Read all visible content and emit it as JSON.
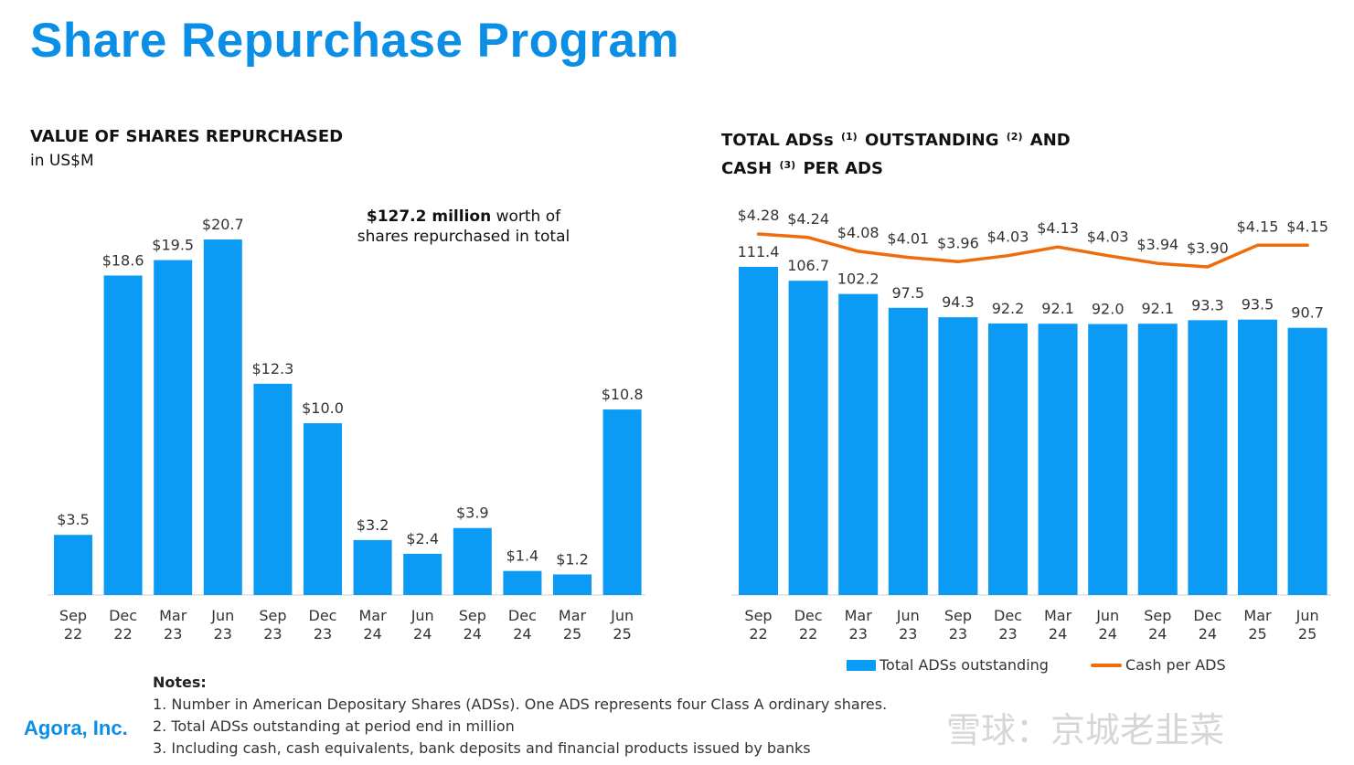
{
  "page": {
    "title": "Share Repurchase Program",
    "company": "Agora, Inc.",
    "watermark": "雪球：京城老韭菜"
  },
  "left_chart": {
    "title": "VALUE OF SHARES REPURCHASED",
    "subtitle": "in US$M",
    "annotation_bold": "$127.2 million",
    "annotation_rest": " worth of",
    "annotation_line2": "shares repurchased in total"
  },
  "right_chart": {
    "title_line1_a": "TOTAL ADSs",
    "sup1": "(1)",
    "title_line1_b": "OUTSTANDING",
    "sup2": "(2)",
    "title_line1_c": "AND",
    "title_line2_a": "CASH",
    "sup3": "(3)",
    "title_line2_b": "PER ADS",
    "legend_bar": "Total ADSs outstanding",
    "legend_line": "Cash per ADS"
  },
  "notes": {
    "heading": "Notes:",
    "items": [
      "1. Number in American Depositary Shares (ADSs). One ADS represents four Class A ordinary shares.",
      "2. Total ADSs outstanding at period end in million",
      "3. Including cash, cash equivalents, bank deposits and financial products issued by banks"
    ]
  },
  "colors": {
    "bar": "#0b9bf5",
    "line": "#ef6c0c",
    "title": "#0b8fe6"
  },
  "chart_data": [
    {
      "type": "bar",
      "title": "VALUE OF SHARES REPURCHASED",
      "ylabel": "in US$M",
      "categories": [
        [
          "Sep",
          "22"
        ],
        [
          "Dec",
          "22"
        ],
        [
          "Mar",
          "23"
        ],
        [
          "Jun",
          "23"
        ],
        [
          "Sep",
          "23"
        ],
        [
          "Dec",
          "23"
        ],
        [
          "Mar",
          "24"
        ],
        [
          "Jun",
          "24"
        ],
        [
          "Sep",
          "24"
        ],
        [
          "Dec",
          "24"
        ],
        [
          "Mar",
          "25"
        ],
        [
          "Jun",
          "25"
        ]
      ],
      "values": [
        3.5,
        18.6,
        19.5,
        20.7,
        12.3,
        10.0,
        3.2,
        2.4,
        3.9,
        1.4,
        1.2,
        10.8
      ],
      "labels": [
        "$3.5",
        "$18.6",
        "$19.5",
        "$20.7",
        "$12.3",
        "$10.0",
        "$3.2",
        "$2.4",
        "$3.9",
        "$1.4",
        "$1.2",
        "$10.8"
      ],
      "ylim": [
        0,
        22
      ]
    },
    {
      "type": "bar+line",
      "title": "TOTAL ADSs OUTSTANDING AND CASH PER ADS",
      "categories": [
        [
          "Sep",
          "22"
        ],
        [
          "Dec",
          "22"
        ],
        [
          "Mar",
          "23"
        ],
        [
          "Jun",
          "23"
        ],
        [
          "Sep",
          "23"
        ],
        [
          "Dec",
          "23"
        ],
        [
          "Mar",
          "24"
        ],
        [
          "Jun",
          "24"
        ],
        [
          "Sep",
          "24"
        ],
        [
          "Dec",
          "24"
        ],
        [
          "Mar",
          "25"
        ],
        [
          "Jun",
          "25"
        ]
      ],
      "series": [
        {
          "name": "Total ADSs outstanding",
          "type": "bar",
          "values": [
            111.4,
            106.7,
            102.2,
            97.5,
            94.3,
            92.2,
            92.1,
            92.0,
            92.1,
            93.3,
            93.5,
            90.7
          ],
          "labels": [
            "111.4",
            "106.7",
            "102.2",
            "97.5",
            "94.3",
            "92.2",
            "92.1",
            "92.0",
            "92.1",
            "93.3",
            "93.5",
            "90.7"
          ]
        },
        {
          "name": "Cash per ADS",
          "type": "line",
          "values": [
            4.28,
            4.24,
            4.08,
            4.01,
            3.96,
            4.03,
            4.13,
            4.03,
            3.94,
            3.9,
            4.15,
            4.15
          ],
          "labels": [
            "$4.28",
            "$4.24",
            "$4.08",
            "$4.01",
            "$3.96",
            "$4.03",
            "$4.13",
            "$4.03",
            "$3.94",
            "$3.90",
            "$4.15",
            "$4.15"
          ]
        }
      ]
    }
  ]
}
